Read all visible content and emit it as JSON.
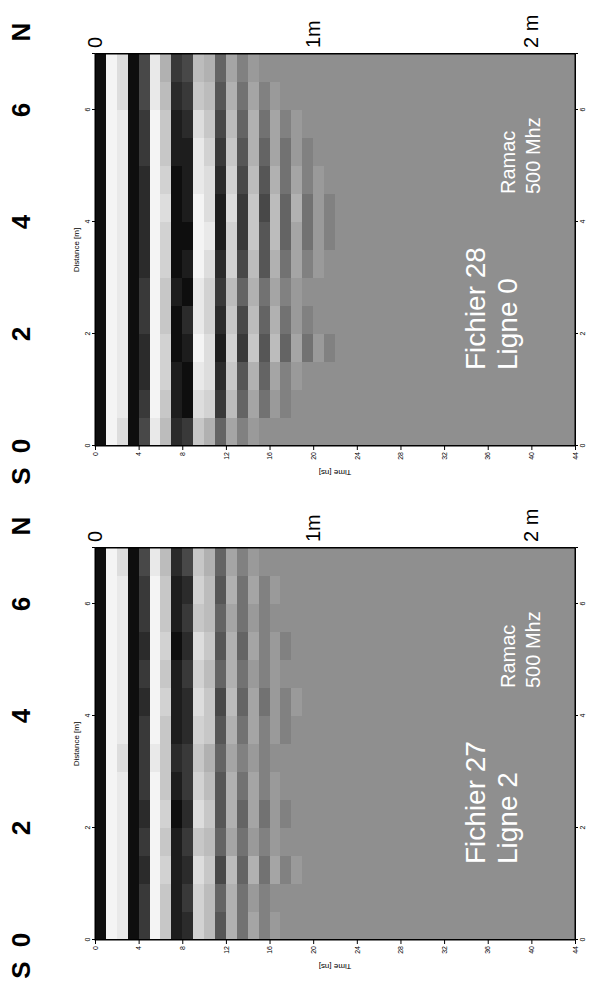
{
  "chart_data": [
    {
      "type": "heatmap",
      "title_lines": [
        "Fichier 27",
        "Ligne 2"
      ],
      "note_lines": [
        "Ramac",
        "500 Mhz"
      ],
      "x_label": "Distance [m]",
      "y_label": "Time [ns]",
      "direction_labels": [
        "S",
        "N"
      ],
      "xlim": [
        0,
        7
      ],
      "xticks": [
        0,
        2,
        4,
        6
      ],
      "x2ticks": [
        0,
        2,
        4,
        6
      ],
      "ylim": [
        0,
        44
      ],
      "yticks": [
        0,
        4,
        8,
        12,
        16,
        20,
        24,
        28,
        32,
        36,
        40,
        44
      ],
      "y2lim": [
        0,
        2.2
      ],
      "y2ticks": [
        0,
        {
          "value": 1,
          "label": "1m"
        },
        {
          "value": 2,
          "label": "2 m"
        }
      ],
      "zlim": [
        -1,
        1
      ],
      "distance_bins": [
        0,
        0.5,
        1,
        1.5,
        2,
        2.5,
        3,
        3.5,
        4,
        4.5,
        5,
        5.5,
        6,
        6.5,
        7
      ],
      "time_bins": [
        0,
        1,
        2,
        3,
        4,
        5,
        6,
        7,
        8,
        9,
        10,
        11,
        12,
        13,
        14,
        15,
        16,
        17,
        18,
        19,
        20,
        21,
        22,
        23,
        24
      ],
      "cells": [
        [
          -0.9,
          0.9,
          0.8,
          -0.9,
          -0.6,
          0.9,
          0.5,
          -0.8,
          -0.7,
          0.6,
          0.4,
          -0.4,
          0.3,
          -0.2,
          0.2,
          -0.1,
          0.1,
          0,
          0,
          0,
          0,
          0,
          0,
          0
        ],
        [
          -0.9,
          0.9,
          0.8,
          -0.9,
          -0.6,
          0.9,
          0.5,
          -0.8,
          -0.6,
          0.6,
          0.4,
          -0.3,
          0.3,
          -0.2,
          0.1,
          -0.1,
          0,
          0,
          0,
          0,
          0,
          0,
          0,
          0
        ],
        [
          -0.9,
          0.9,
          0.8,
          -0.9,
          -0.7,
          0.9,
          0.6,
          -0.8,
          -0.7,
          0.7,
          0.5,
          -0.5,
          0.4,
          -0.3,
          0.3,
          -0.2,
          0.2,
          -0.1,
          0.1,
          0,
          0,
          0,
          0,
          0
        ],
        [
          -0.9,
          0.9,
          0.8,
          -0.9,
          -0.6,
          0.9,
          0.5,
          -0.8,
          -0.6,
          0.5,
          0.4,
          -0.3,
          0.2,
          -0.2,
          0.1,
          -0.1,
          0.1,
          0,
          0,
          0,
          0,
          0,
          0,
          0
        ],
        [
          -0.9,
          0.9,
          0.8,
          -0.9,
          -0.7,
          0.9,
          0.6,
          -0.9,
          -0.7,
          0.7,
          0.5,
          -0.4,
          0.3,
          -0.3,
          0.2,
          -0.2,
          0.1,
          -0.1,
          0,
          0,
          0,
          0,
          0,
          0
        ],
        [
          -0.9,
          0.9,
          0.8,
          -0.9,
          -0.6,
          0.9,
          0.5,
          -0.8,
          -0.6,
          0.6,
          0.4,
          -0.4,
          0.3,
          -0.2,
          0.2,
          -0.1,
          0.1,
          0,
          0,
          0,
          0,
          0,
          0,
          0
        ],
        [
          -0.9,
          0.9,
          0.7,
          -0.9,
          -0.6,
          0.8,
          0.5,
          -0.7,
          -0.6,
          0.5,
          0.3,
          -0.3,
          0.2,
          -0.1,
          0.1,
          -0.1,
          0,
          0,
          0,
          0,
          0,
          0,
          0,
          0
        ],
        [
          -0.9,
          0.9,
          0.8,
          -0.9,
          -0.6,
          0.9,
          0.5,
          -0.8,
          -0.7,
          0.6,
          0.5,
          -0.4,
          0.3,
          -0.2,
          0.2,
          -0.1,
          0.1,
          -0.1,
          0,
          0,
          0,
          0,
          0,
          0
        ],
        [
          -0.9,
          0.9,
          0.8,
          -0.9,
          -0.7,
          0.9,
          0.6,
          -0.8,
          -0.7,
          0.7,
          0.5,
          -0.5,
          0.4,
          -0.3,
          0.2,
          -0.2,
          0.1,
          -0.1,
          0.1,
          0,
          0,
          0,
          0,
          0
        ],
        [
          -0.9,
          0.9,
          0.8,
          -0.9,
          -0.6,
          0.9,
          0.5,
          -0.8,
          -0.6,
          0.6,
          0.4,
          -0.3,
          0.3,
          -0.2,
          0.1,
          -0.1,
          0.1,
          0,
          0,
          0,
          0,
          0,
          0,
          0
        ],
        [
          -0.9,
          0.9,
          0.8,
          -0.9,
          -0.7,
          0.9,
          0.6,
          -0.9,
          -0.7,
          0.7,
          0.5,
          -0.4,
          0.3,
          -0.3,
          0.2,
          -0.1,
          0.1,
          -0.1,
          0,
          0,
          0,
          0,
          0,
          0
        ],
        [
          -0.9,
          0.9,
          0.8,
          -0.9,
          -0.6,
          0.9,
          0.5,
          -0.8,
          -0.6,
          0.5,
          0.4,
          -0.3,
          0.2,
          -0.2,
          0.1,
          -0.1,
          0,
          0,
          0,
          0,
          0,
          0,
          0,
          0
        ],
        [
          -0.9,
          0.9,
          0.8,
          -0.9,
          -0.6,
          0.9,
          0.5,
          -0.8,
          -0.7,
          0.6,
          0.4,
          -0.4,
          0.3,
          -0.2,
          0.2,
          -0.1,
          0.1,
          0,
          0,
          0,
          0,
          0,
          0,
          0
        ],
        [
          -0.9,
          0.9,
          0.7,
          -0.9,
          -0.5,
          0.8,
          0.4,
          -0.7,
          -0.5,
          0.5,
          0.3,
          -0.3,
          0.2,
          -0.1,
          0.1,
          0,
          0,
          0,
          0,
          0,
          0,
          0,
          0,
          0
        ]
      ]
    },
    {
      "type": "heatmap",
      "title_lines": [
        "Fichier 28",
        "Ligne 0"
      ],
      "note_lines": [
        "Ramac",
        "500 Mhz"
      ],
      "x_label": "Distance [m]",
      "y_label": "Time [ns]",
      "direction_labels": [
        "S",
        "N"
      ],
      "xlim": [
        0,
        7
      ],
      "xticks": [
        0,
        2,
        4,
        6
      ],
      "x2ticks": [
        0,
        2,
        4,
        6
      ],
      "ylim": [
        0,
        44
      ],
      "yticks": [
        0,
        4,
        8,
        12,
        16,
        20,
        24,
        28,
        32,
        36,
        40,
        44
      ],
      "y2lim": [
        0,
        2.2
      ],
      "y2ticks": [
        0,
        {
          "value": 1,
          "label": "1m"
        },
        {
          "value": 2,
          "label": "2 m"
        }
      ],
      "zlim": [
        -1,
        1
      ],
      "distance_bins": [
        0,
        0.5,
        1,
        1.5,
        2,
        2.5,
        3,
        3.5,
        4,
        4.5,
        5,
        5.5,
        6,
        6.5,
        7
      ],
      "time_bins": [
        0,
        1,
        2,
        3,
        4,
        5,
        6,
        7,
        8,
        9,
        10,
        11,
        12,
        13,
        14,
        15,
        16,
        17,
        18,
        19,
        20,
        21,
        22,
        23,
        24
      ],
      "cells": [
        [
          -0.9,
          0.9,
          0.7,
          -0.9,
          -0.5,
          0.8,
          0.4,
          -0.7,
          -0.6,
          0.5,
          0.3,
          -0.3,
          0.2,
          -0.1,
          0.1,
          0,
          0,
          0,
          0,
          0,
          0,
          0,
          0,
          0
        ],
        [
          -0.9,
          0.9,
          0.8,
          -0.9,
          -0.6,
          0.9,
          0.5,
          -0.8,
          -0.9,
          0.7,
          0.6,
          -0.6,
          0.4,
          -0.3,
          0.2,
          -0.2,
          0.1,
          -0.1,
          0,
          0,
          0,
          0,
          0,
          0
        ],
        [
          -0.9,
          0.9,
          0.8,
          -0.9,
          -0.7,
          0.9,
          0.6,
          -0.8,
          -0.9,
          0.8,
          0.7,
          -0.7,
          0.5,
          -0.4,
          0.3,
          -0.3,
          0.2,
          -0.1,
          0.1,
          0,
          0,
          0,
          0,
          0
        ],
        [
          -0.9,
          0.9,
          0.8,
          -0.9,
          -0.7,
          0.9,
          0.6,
          -0.9,
          -0.8,
          0.9,
          0.7,
          -0.8,
          0.6,
          -0.6,
          0.5,
          -0.4,
          0.4,
          -0.3,
          0.2,
          -0.2,
          0.1,
          -0.1,
          0,
          0
        ],
        [
          -0.9,
          0.9,
          0.8,
          -0.9,
          -0.6,
          0.9,
          0.5,
          -0.9,
          -0.7,
          0.8,
          0.6,
          -0.7,
          0.5,
          -0.5,
          0.4,
          -0.3,
          0.3,
          -0.2,
          0.1,
          -0.1,
          0,
          0,
          0,
          0
        ],
        [
          -0.9,
          0.9,
          0.8,
          -0.9,
          -0.6,
          0.9,
          0.5,
          -0.8,
          -0.9,
          0.8,
          0.6,
          -0.6,
          0.4,
          -0.3,
          0.3,
          -0.2,
          0.2,
          -0.1,
          0.1,
          0,
          0,
          0,
          0,
          0
        ],
        [
          -0.9,
          0.9,
          0.8,
          -0.9,
          -0.7,
          0.9,
          0.6,
          -0.9,
          -0.8,
          0.9,
          0.7,
          -0.7,
          0.6,
          -0.5,
          0.4,
          -0.4,
          0.3,
          -0.2,
          0.2,
          -0.1,
          0.1,
          0,
          0,
          0
        ],
        [
          -0.9,
          0.9,
          0.8,
          -0.9,
          -0.7,
          0.9,
          0.6,
          -0.9,
          -0.9,
          0.9,
          0.8,
          -0.8,
          0.6,
          -0.6,
          0.5,
          -0.4,
          0.4,
          -0.3,
          0.2,
          -0.2,
          0.1,
          -0.1,
          0,
          0
        ],
        [
          -0.9,
          0.9,
          0.8,
          -0.9,
          -0.7,
          0.9,
          0.7,
          -0.9,
          -0.8,
          0.9,
          0.7,
          -0.8,
          0.7,
          -0.6,
          0.5,
          -0.5,
          0.4,
          -0.3,
          0.3,
          -0.2,
          0.1,
          -0.1,
          0,
          0
        ],
        [
          -0.9,
          0.9,
          0.8,
          -0.9,
          -0.7,
          0.9,
          0.6,
          -0.9,
          -0.8,
          0.8,
          0.7,
          -0.7,
          0.6,
          -0.5,
          0.4,
          -0.4,
          0.3,
          -0.2,
          0.2,
          -0.1,
          0.1,
          0,
          0,
          0
        ],
        [
          -0.9,
          0.9,
          0.8,
          -0.9,
          -0.6,
          0.9,
          0.5,
          -0.8,
          -0.8,
          0.8,
          0.6,
          -0.6,
          0.5,
          -0.4,
          0.3,
          -0.3,
          0.2,
          -0.2,
          0.1,
          -0.1,
          0,
          0,
          0,
          0
        ],
        [
          -0.9,
          0.9,
          0.8,
          -0.9,
          -0.6,
          0.9,
          0.5,
          -0.8,
          -0.7,
          0.7,
          0.5,
          -0.5,
          0.4,
          -0.3,
          0.3,
          -0.2,
          0.2,
          -0.1,
          0.1,
          0,
          0,
          0,
          0,
          0
        ],
        [
          -0.9,
          0.9,
          0.7,
          -0.9,
          -0.5,
          0.8,
          0.4,
          -0.7,
          -0.6,
          0.5,
          0.4,
          -0.4,
          0.3,
          -0.2,
          0.2,
          -0.1,
          0.1,
          0,
          0,
          0,
          0,
          0,
          0,
          0
        ],
        [
          -0.9,
          0.9,
          0.7,
          -0.9,
          -0.5,
          0.8,
          0.3,
          -0.6,
          -0.5,
          0.4,
          0.3,
          -0.3,
          0.2,
          -0.1,
          0.1,
          0,
          0,
          0,
          0,
          0,
          0,
          0,
          0,
          0
        ]
      ]
    }
  ]
}
